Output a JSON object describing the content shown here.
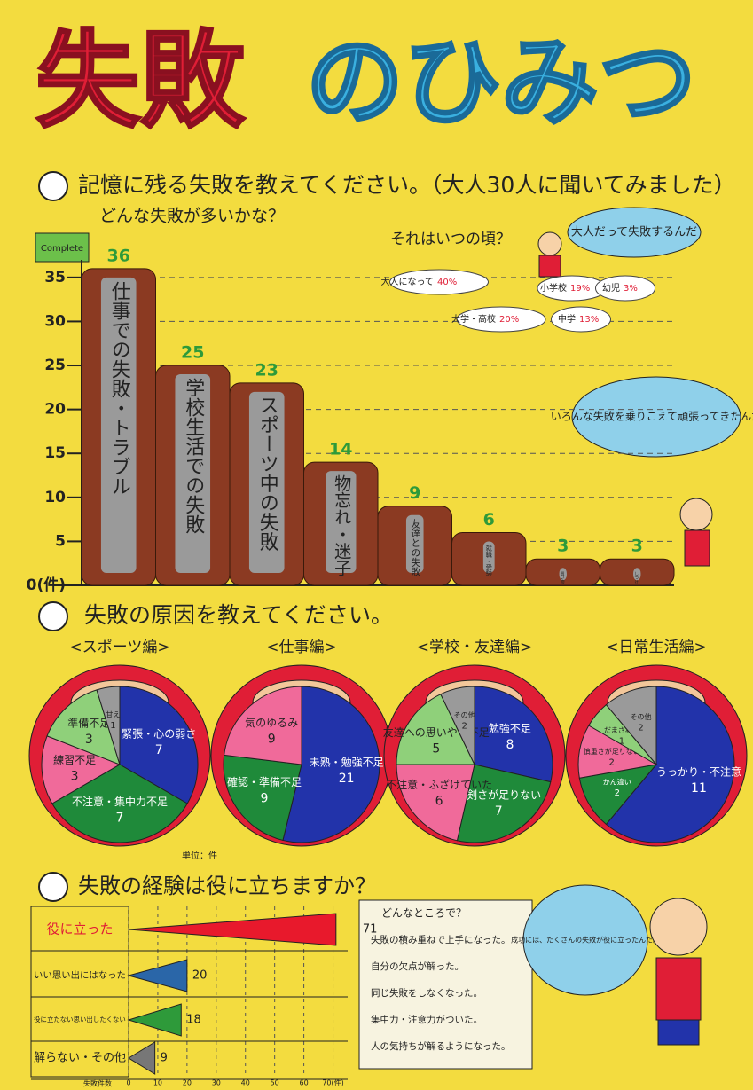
{
  "title_1": "失敗",
  "title_2": "のひみつ",
  "sections": [
    "記憶に残る失敗を教えてください。（大人30人に聞いてみました）",
    "失敗の原因を教えてください。",
    "失敗の経験は役に立ちますか？"
  ],
  "flag": "Complete",
  "bubbles": [
    "大人だって失敗するんだ",
    "いろんな失敗を乗りこえて頑張ってきたんだ",
    "成功には、たくさんの失敗が役に立ったんだ。"
  ],
  "unit_note": "単位：件",
  "notes": {
    "title": "どんなところで？",
    "items": [
      "失敗の積み重ねで上手になった。",
      "自分の欠点が解った。",
      "同じ失敗をしなくなった。",
      "集中力・注意力がついた。",
      "人の気持ちが解るようになった。"
    ]
  },
  "chart_data": [
    {
      "type": "bar",
      "subtitle": "どんな失敗が多いかな？",
      "categories": [
        "仕事での失敗・トラブル",
        "学校生活での失敗",
        "スポーツ中の失敗",
        "物忘れ・迷子",
        "友達との失敗",
        "就職・受験",
        "買い物",
        "しつけ"
      ],
      "values": [
        36,
        25,
        23,
        14,
        9,
        6,
        3,
        3
      ],
      "ylim": [
        0,
        37
      ],
      "yticks": [
        {
          "value": 0,
          "label": "0(件)"
        },
        5,
        10,
        15,
        20,
        25,
        30,
        35
      ],
      "grid": true,
      "color": "#8b3a22",
      "label_color": "#2e9a3a"
    },
    {
      "type": "cloud",
      "title": "それはいつの頃？",
      "categories": [
        "大人になって",
        "小学校",
        "幼児",
        "大学・高校",
        "中学"
      ],
      "values": [
        40,
        19,
        3,
        20,
        13
      ],
      "value_labels": [
        "40%",
        "19%",
        "3%",
        "20%",
        "13%"
      ]
    },
    {
      "type": "pie",
      "title": "<スポーツ編>",
      "categories": [
        "緊張・心の弱さ",
        "不注意・集中力不足",
        "練習不足",
        "準備不足",
        "甘え"
      ],
      "values": [
        7,
        7,
        3,
        3,
        1
      ],
      "colors": [
        "#2233aa",
        "#1f8a3a",
        "#f06a9a",
        "#8fd07a",
        "#9a9a9a"
      ]
    },
    {
      "type": "pie",
      "title": "<仕事編>",
      "categories": [
        "未熟・勉強不足",
        "確認・準備不足",
        "気のゆるみ"
      ],
      "values": [
        21,
        9,
        9
      ],
      "colors": [
        "#2233aa",
        "#1f8a3a",
        "#f06a9a"
      ]
    },
    {
      "type": "pie",
      "title": "<学校・友達編>",
      "categories": [
        "勉強不足",
        "真剣さが足りない",
        "不注意・ふざけていた",
        "友達への思いやり不足",
        "その他"
      ],
      "values": [
        8,
        7,
        6,
        5,
        2
      ],
      "colors": [
        "#2233aa",
        "#1f8a3a",
        "#f06a9a",
        "#8fd07a",
        "#9a9a9a"
      ]
    },
    {
      "type": "pie",
      "title": "<日常生活編>",
      "categories": [
        "うっかり・不注意",
        "かん違い",
        "慎重さが足りない",
        "だまされた",
        "その他"
      ],
      "values": [
        11,
        2,
        2,
        1,
        2
      ],
      "colors": [
        "#2233aa",
        "#1f8a3a",
        "#f06a9a",
        "#8fd07a",
        "#9a9a9a"
      ]
    },
    {
      "type": "hbar",
      "categories": [
        "役に立った",
        "いい思い出にはなった",
        "役に立たない思い出したくない",
        "解らない・その他"
      ],
      "values": [
        71,
        20,
        18,
        9
      ],
      "xlim": [
        0,
        75
      ],
      "xticks": [
        0,
        10,
        20,
        30,
        40,
        50,
        60,
        {
          "value": 70,
          "label": "70(件)"
        }
      ],
      "x_label": "失敗件数",
      "colors": [
        "#e8192c",
        "#2a66a8",
        "#2e9a3a",
        "#777777"
      ]
    }
  ]
}
